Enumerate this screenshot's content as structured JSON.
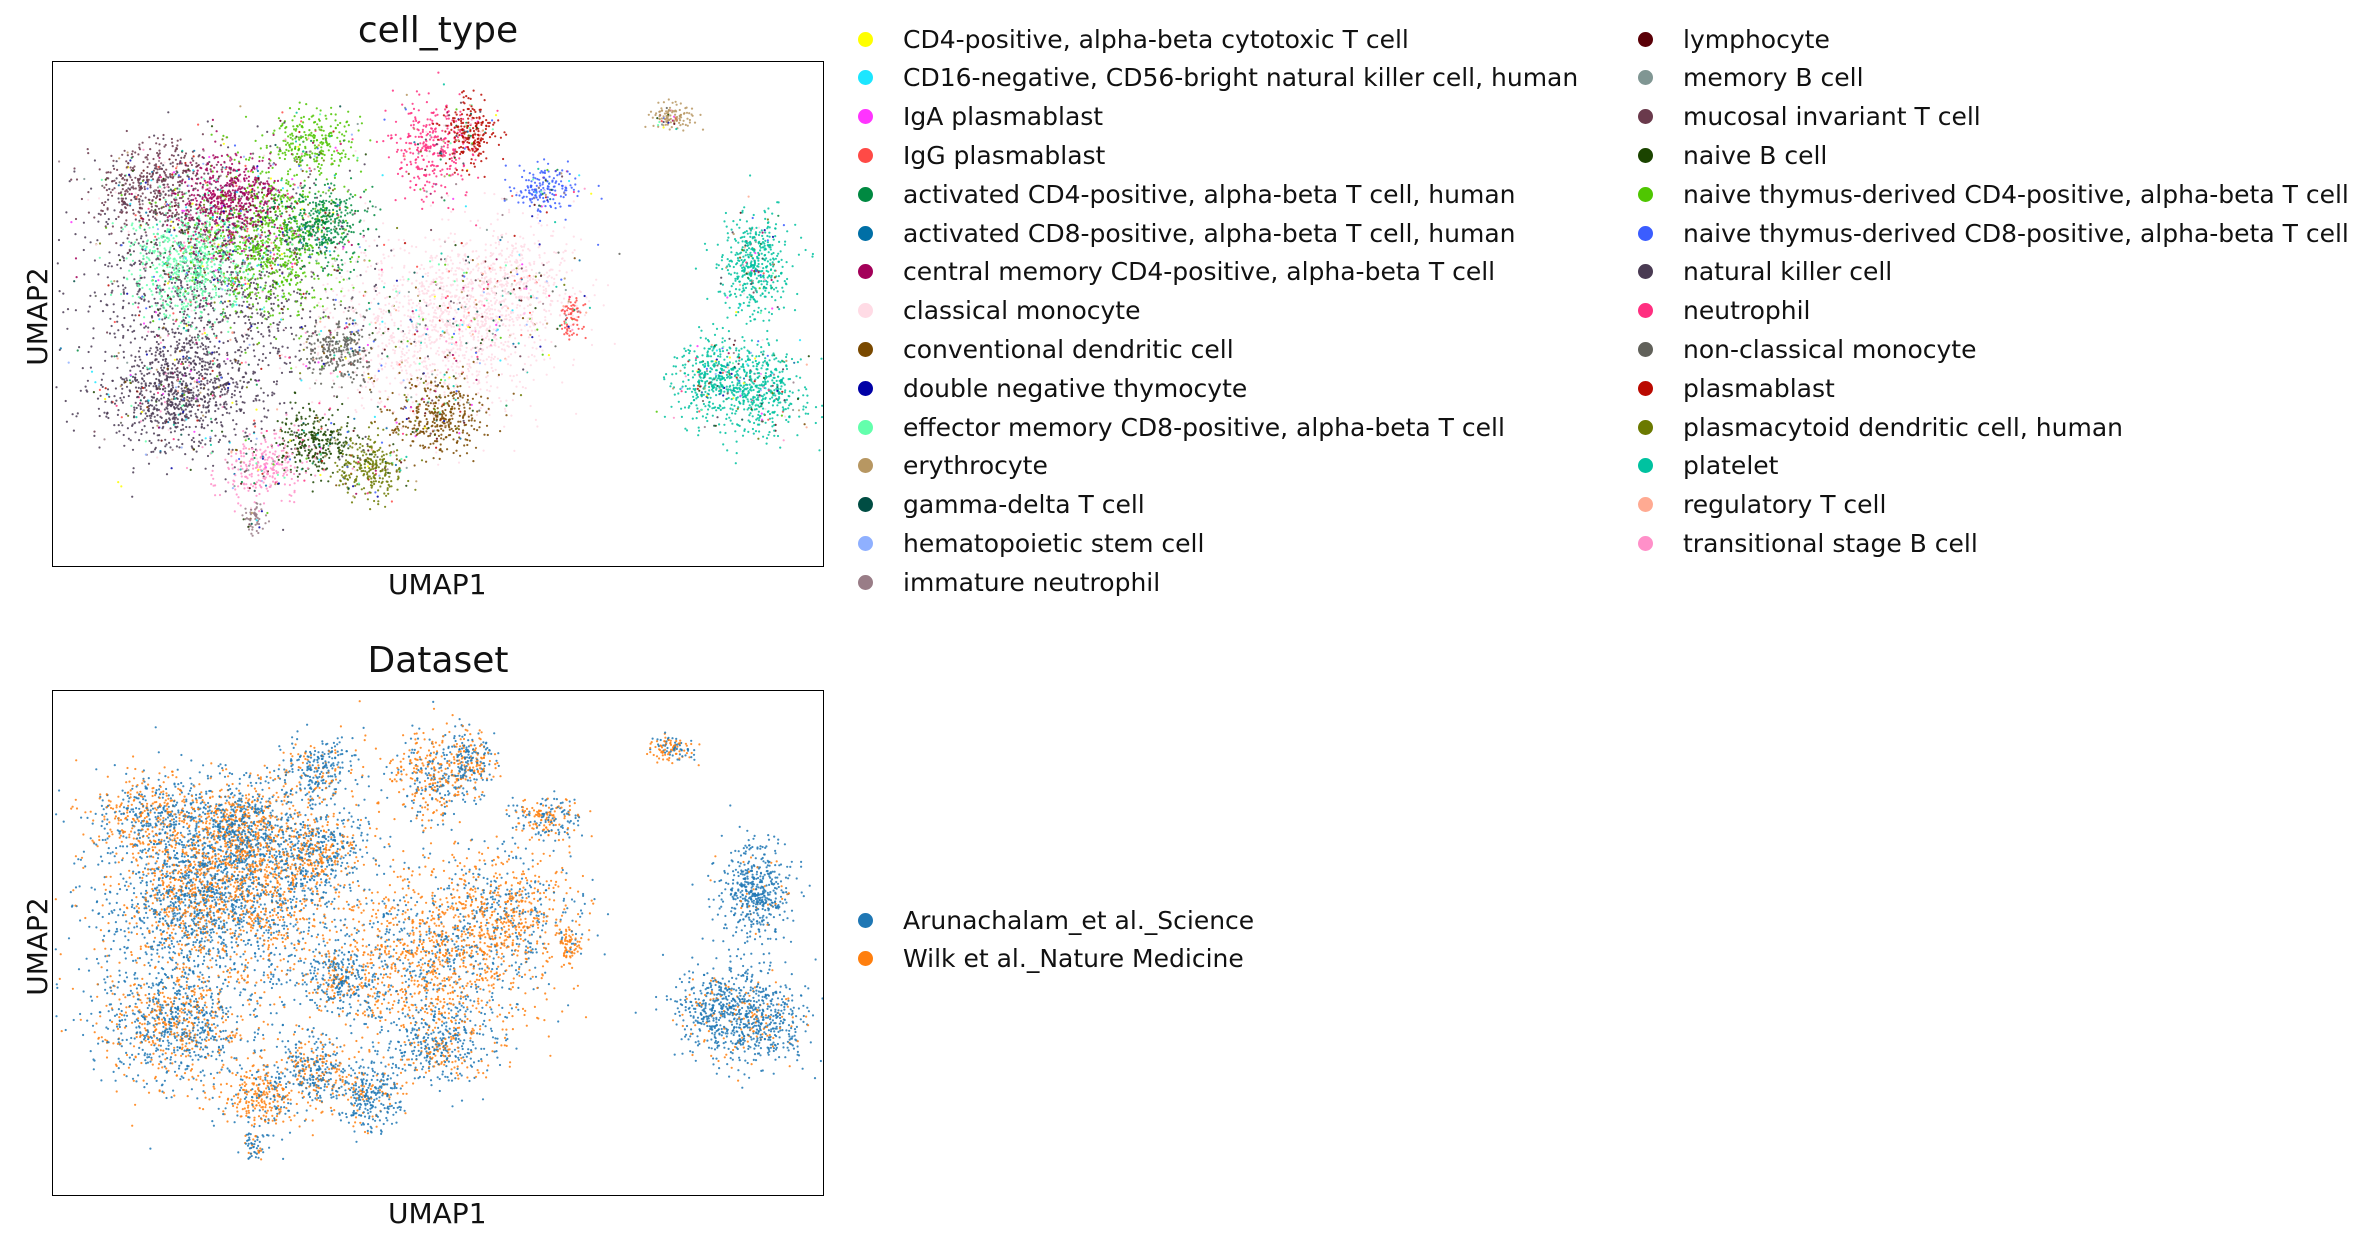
{
  "chart_data": [
    {
      "type": "scatter",
      "title": "cell_type",
      "xlabel": "UMAP1",
      "ylabel": "UMAP2",
      "grid": false,
      "legend_position": "right",
      "legend_columns": 2,
      "categories": [
        {
          "name": "CD4-positive, alpha-beta cytotoxic T cell",
          "color": "#ffff00"
        },
        {
          "name": "CD16-negative, CD56-bright natural killer cell, human",
          "color": "#1ce6ff"
        },
        {
          "name": "IgA plasmablast",
          "color": "#ff34ff"
        },
        {
          "name": "IgG plasmablast",
          "color": "#ff4a46"
        },
        {
          "name": "activated CD4-positive, alpha-beta T cell, human",
          "color": "#008941"
        },
        {
          "name": "activated CD8-positive, alpha-beta T cell, human",
          "color": "#006fa6"
        },
        {
          "name": "central memory CD4-positive, alpha-beta T cell",
          "color": "#a30059"
        },
        {
          "name": "classical monocyte",
          "color": "#ffdbe5"
        },
        {
          "name": "conventional dendritic cell",
          "color": "#7a4900"
        },
        {
          "name": "double negative thymocyte",
          "color": "#0000a6"
        },
        {
          "name": "effector memory CD8-positive, alpha-beta T cell",
          "color": "#63ffac"
        },
        {
          "name": "erythrocyte",
          "color": "#b79762"
        },
        {
          "name": "gamma-delta T cell",
          "color": "#004d43"
        },
        {
          "name": "hematopoietic stem cell",
          "color": "#8fb0ff"
        },
        {
          "name": "immature neutrophil",
          "color": "#997d87"
        },
        {
          "name": "lymphocyte",
          "color": "#5a0007"
        },
        {
          "name": "memory B cell",
          "color": "#809693"
        },
        {
          "name": "mucosal invariant T cell",
          "color": "#6a3a4c"
        },
        {
          "name": "naive B cell",
          "color": "#1b4400"
        },
        {
          "name": "naive thymus-derived CD4-positive, alpha-beta T cell",
          "color": "#4fc601"
        },
        {
          "name": "naive thymus-derived CD8-positive, alpha-beta T cell",
          "color": "#3b5dff"
        },
        {
          "name": "natural killer cell",
          "color": "#4a3b53"
        },
        {
          "name": "neutrophil",
          "color": "#ff2f80"
        },
        {
          "name": "non-classical monocyte",
          "color": "#61615a"
        },
        {
          "name": "plasmablast",
          "color": "#ba0900"
        },
        {
          "name": "plasmacytoid dendritic cell, human",
          "color": "#6b7900"
        },
        {
          "name": "platelet",
          "color": "#00c2a0"
        },
        {
          "name": "regulatory T cell",
          "color": "#ffaa92"
        },
        {
          "name": "transitional stage B cell",
          "color": "#ff90c9"
        }
      ]
    },
    {
      "type": "scatter",
      "title": "Dataset",
      "xlabel": "UMAP1",
      "ylabel": "UMAP2",
      "grid": false,
      "legend_position": "right",
      "legend_columns": 1,
      "categories": [
        {
          "name": "Arunachalam_et al._Science",
          "color": "#1f77b4"
        },
        {
          "name": "Wilk et al._Nature Medicine",
          "color": "#ff7f0e"
        }
      ]
    }
  ]
}
